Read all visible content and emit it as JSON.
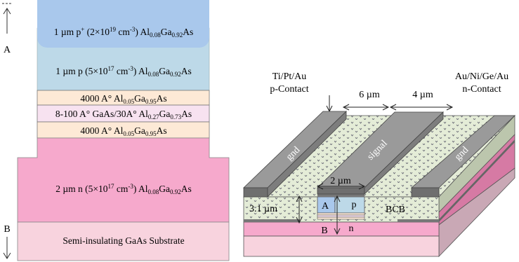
{
  "colors": {
    "p_plus": "#a9c8ec",
    "p_layer": "#bdd9e8",
    "barrier": "#fde9d6",
    "quantum_well": "#f7e2f0",
    "n_layer": "#f6a9cc",
    "substrate": "#f8d3de",
    "bcb": "#e4ecd7",
    "metal_top": "#9a9a9a",
    "metal_side": "#6f6f6f"
  },
  "stack": {
    "label_a": "A",
    "label_b": "B",
    "layers": [
      {
        "id": "p-plus",
        "parts": [
          [
            "1 µm p",
            ""
          ],
          [
            "+",
            "sup"
          ],
          [
            " (2×10",
            ""
          ],
          [
            "19",
            "sup"
          ],
          [
            " cm",
            ""
          ],
          [
            "-3",
            "sup"
          ],
          [
            ") Al",
            ""
          ],
          [
            "0.08",
            "sub"
          ],
          [
            "Ga",
            ""
          ],
          [
            "0.92",
            "sub"
          ],
          [
            "As",
            ""
          ]
        ]
      },
      {
        "id": "p-layer",
        "parts": [
          [
            "1 µm p (5×10",
            ""
          ],
          [
            "17",
            "sup"
          ],
          [
            " cm",
            ""
          ],
          [
            "-3",
            "sup"
          ],
          [
            ") Al",
            ""
          ],
          [
            "0.08",
            "sub"
          ],
          [
            "Ga",
            ""
          ],
          [
            "0.92",
            "sub"
          ],
          [
            "As",
            ""
          ]
        ]
      },
      {
        "id": "barrier-top",
        "parts": [
          [
            "4000 A° Al",
            ""
          ],
          [
            "0.05",
            "sub"
          ],
          [
            "Ga",
            ""
          ],
          [
            "0.95",
            "sub"
          ],
          [
            "As",
            ""
          ]
        ]
      },
      {
        "id": "quantum-well",
        "parts": [
          [
            "8-100 A° GaAs/30A° Al",
            ""
          ],
          [
            "0.27",
            "sub"
          ],
          [
            "Ga",
            ""
          ],
          [
            "0.73",
            "sub"
          ],
          [
            "As",
            ""
          ]
        ]
      },
      {
        "id": "barrier-bottom",
        "parts": [
          [
            "4000 A° Al",
            ""
          ],
          [
            "0.05",
            "sub"
          ],
          [
            "Ga",
            ""
          ],
          [
            "0.95",
            "sub"
          ],
          [
            "As",
            ""
          ]
        ]
      },
      {
        "id": "n-layer",
        "parts": [
          [
            "2 µm n (5×10",
            ""
          ],
          [
            "17",
            "sup"
          ],
          [
            " cm",
            ""
          ],
          [
            "-3",
            "sup"
          ],
          [
            ") Al",
            ""
          ],
          [
            "0.08",
            "sub"
          ],
          [
            "Ga",
            ""
          ],
          [
            "0.92",
            "sub"
          ],
          [
            "As",
            ""
          ]
        ]
      },
      {
        "id": "substrate",
        "parts": [
          [
            "Semi-insulating GaAs Substrate",
            ""
          ]
        ]
      }
    ]
  },
  "device": {
    "p_contact_line1": "Ti/Pt/Au",
    "p_contact_line2": "p-Contact",
    "n_contact_line1": "Au/Ni/Ge/Au",
    "n_contact_line2": "n-Contact",
    "gap_left": "6 µm",
    "gap_right": "4 µm",
    "electrode_left": "gnd",
    "electrode_center": "signal",
    "electrode_right": "gnd",
    "ridge_width": "2 µm",
    "height": "3.1 µm",
    "region_a": "A",
    "region_p": "p",
    "region_b": "B",
    "region_n": "n",
    "bcb": "BCB"
  }
}
